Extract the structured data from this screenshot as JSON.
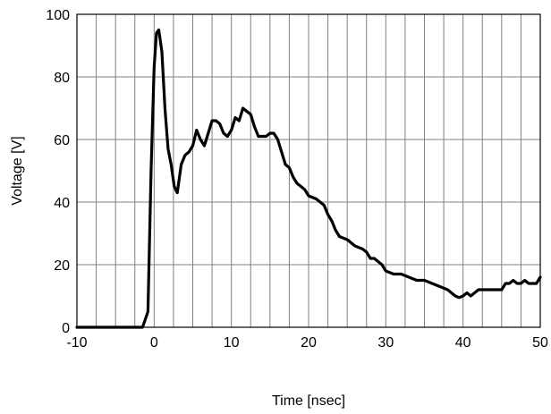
{
  "chart_data": {
    "type": "line",
    "xlabel": "Time [nsec]",
    "ylabel": "Voltage [V]",
    "xlim": [
      -10,
      50
    ],
    "ylim": [
      0,
      100
    ],
    "x_ticks": [
      -10,
      0,
      10,
      20,
      30,
      40,
      50
    ],
    "y_ticks": [
      0,
      20,
      40,
      60,
      80,
      100
    ],
    "x_tick_labels": [
      "-10",
      "0",
      "10",
      "20",
      "30",
      "40",
      "50"
    ],
    "y_tick_labels": [
      "0",
      "20",
      "40",
      "60",
      "80",
      "100"
    ],
    "x_grid_step": 2.5,
    "y_grid_step": 20,
    "grid": true,
    "legend": "none",
    "line_color": "#000000",
    "grid_color": "#808080",
    "series": [
      {
        "x": [
          -10,
          -2.2,
          -1.5,
          -0.8,
          -0.4,
          0,
          0.3,
          0.6,
          1.0,
          1.4,
          1.8,
          2.2,
          2.6,
          3.0,
          3.5,
          4.0,
          4.5,
          5.0,
          5.5,
          6.0,
          6.5,
          7.0,
          7.5,
          8.0,
          8.5,
          9.0,
          9.5,
          10.0,
          10.5,
          11.0,
          11.5,
          12.0,
          12.5,
          13.0,
          13.5,
          14.0,
          14.5,
          15.0,
          15.5,
          16.0,
          16.5,
          17.0,
          17.5,
          18.0,
          18.5,
          19.0,
          19.5,
          20.0,
          21.0,
          22.0,
          22.5,
          23.0,
          23.5,
          24.0,
          25.0,
          25.5,
          26.0,
          27.0,
          27.5,
          28.0,
          28.5,
          29.0,
          29.5,
          30.0,
          31.0,
          32.0,
          33.0,
          34.0,
          35.0,
          36.0,
          37.0,
          38.0,
          38.5,
          39.0,
          39.5,
          40.0,
          40.5,
          41.0,
          41.5,
          42.0,
          43.0,
          44.0,
          45.0,
          45.5,
          46.0,
          46.5,
          47.0,
          47.5,
          48.0,
          48.5,
          49.0,
          49.5,
          50.0
        ],
        "y": [
          0,
          0,
          0,
          5,
          50,
          83,
          94,
          95,
          88,
          70,
          57,
          52,
          45,
          43,
          52,
          55,
          56,
          58,
          63,
          60,
          58,
          62,
          66,
          66,
          65,
          62,
          61,
          63,
          67,
          66,
          70,
          69,
          68,
          64,
          61,
          61,
          61,
          62,
          62,
          60,
          56,
          52,
          51,
          48,
          46,
          45,
          44,
          42,
          41,
          39,
          36,
          34,
          31,
          29,
          28,
          27,
          26,
          25,
          24,
          22,
          22,
          21,
          20,
          18,
          17,
          17,
          16,
          15,
          15,
          14,
          13,
          12,
          11,
          10,
          9.5,
          10,
          11,
          10,
          11,
          12,
          12,
          12,
          12,
          14,
          14,
          15,
          14,
          14,
          15,
          14,
          14,
          14,
          16
        ]
      }
    ]
  }
}
